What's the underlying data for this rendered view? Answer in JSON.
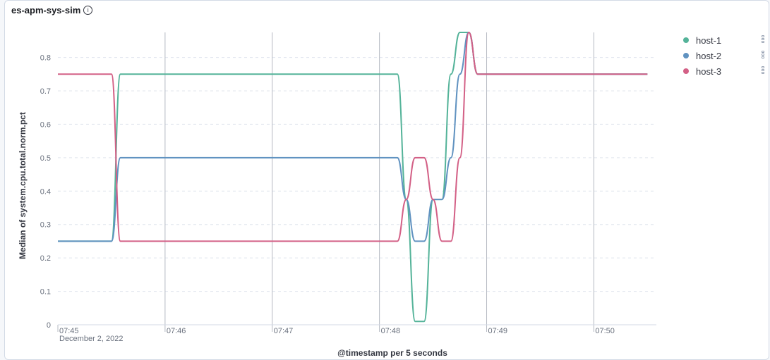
{
  "panel": {
    "title": "es-apm-sys-sim",
    "info_icon": "info-icon"
  },
  "colors": {
    "host-1": "#54b399",
    "host-2": "#6092c0",
    "host-3": "#d36086",
    "grid": "#e0e5ee",
    "tick_line": "#b4b9c2"
  },
  "chart_data": {
    "type": "line",
    "title": "es-apm-sys-sim",
    "xlabel": "@timestamp per 5 seconds",
    "ylabel": "Median of system.cpu.total.norm.pct",
    "x_date": "December 2, 2022",
    "x_range": [
      "07:45:00",
      "07:50:35"
    ],
    "x_ticks": [
      "07:45",
      "07:46",
      "07:47",
      "07:48",
      "07:49",
      "07:50"
    ],
    "ylim": [
      0,
      0.875
    ],
    "y_ticks": [
      0,
      0.1,
      0.2,
      0.3,
      0.4,
      0.5,
      0.6,
      0.7,
      0.8
    ],
    "y_tick_labels": [
      "0",
      "0.1",
      "0.2",
      "0.3",
      "0.4",
      "0.5",
      "0.6",
      "0.7",
      "0.8"
    ],
    "grid": true,
    "legend_position": "top-right",
    "series": [
      {
        "name": "host-1",
        "color": "#54b399",
        "points": [
          [
            "07:45:00",
            0.25
          ],
          [
            "07:45:30",
            0.25
          ],
          [
            "07:45:35",
            0.75
          ],
          [
            "07:48:10",
            0.75
          ],
          [
            "07:48:15",
            0.375
          ],
          [
            "07:48:20",
            0.01
          ],
          [
            "07:48:25",
            0.01
          ],
          [
            "07:48:30",
            0.375
          ],
          [
            "07:48:35",
            0.375
          ],
          [
            "07:48:40",
            0.75
          ],
          [
            "07:48:45",
            0.875
          ],
          [
            "07:48:50",
            0.875
          ],
          [
            "07:48:55",
            0.75
          ],
          [
            "07:50:30",
            0.75
          ]
        ]
      },
      {
        "name": "host-2",
        "color": "#6092c0",
        "points": [
          [
            "07:45:00",
            0.25
          ],
          [
            "07:45:30",
            0.25
          ],
          [
            "07:45:35",
            0.5
          ],
          [
            "07:48:10",
            0.5
          ],
          [
            "07:48:15",
            0.375
          ],
          [
            "07:48:20",
            0.25
          ],
          [
            "07:48:25",
            0.25
          ],
          [
            "07:48:30",
            0.375
          ],
          [
            "07:48:35",
            0.375
          ],
          [
            "07:48:40",
            0.5
          ],
          [
            "07:48:45",
            0.75
          ],
          [
            "07:48:50",
            0.875
          ],
          [
            "07:48:55",
            0.75
          ],
          [
            "07:50:30",
            0.75
          ]
        ]
      },
      {
        "name": "host-3",
        "color": "#d36086",
        "points": [
          [
            "07:45:00",
            0.75
          ],
          [
            "07:45:30",
            0.75
          ],
          [
            "07:45:35",
            0.25
          ],
          [
            "07:48:10",
            0.25
          ],
          [
            "07:48:15",
            0.375
          ],
          [
            "07:48:20",
            0.5
          ],
          [
            "07:48:25",
            0.5
          ],
          [
            "07:48:30",
            0.375
          ],
          [
            "07:48:35",
            0.25
          ],
          [
            "07:48:40",
            0.25
          ],
          [
            "07:48:45",
            0.5
          ],
          [
            "07:48:50",
            0.875
          ],
          [
            "07:48:55",
            0.75
          ],
          [
            "07:50:30",
            0.75
          ]
        ]
      }
    ]
  },
  "legend": {
    "items": [
      {
        "label": "host-1",
        "color": "#54b399",
        "menu_icon": "ellipsis-icon"
      },
      {
        "label": "host-2",
        "color": "#6092c0",
        "menu_icon": "ellipsis-icon"
      },
      {
        "label": "host-3",
        "color": "#d36086",
        "menu_icon": "ellipsis-icon"
      }
    ]
  }
}
